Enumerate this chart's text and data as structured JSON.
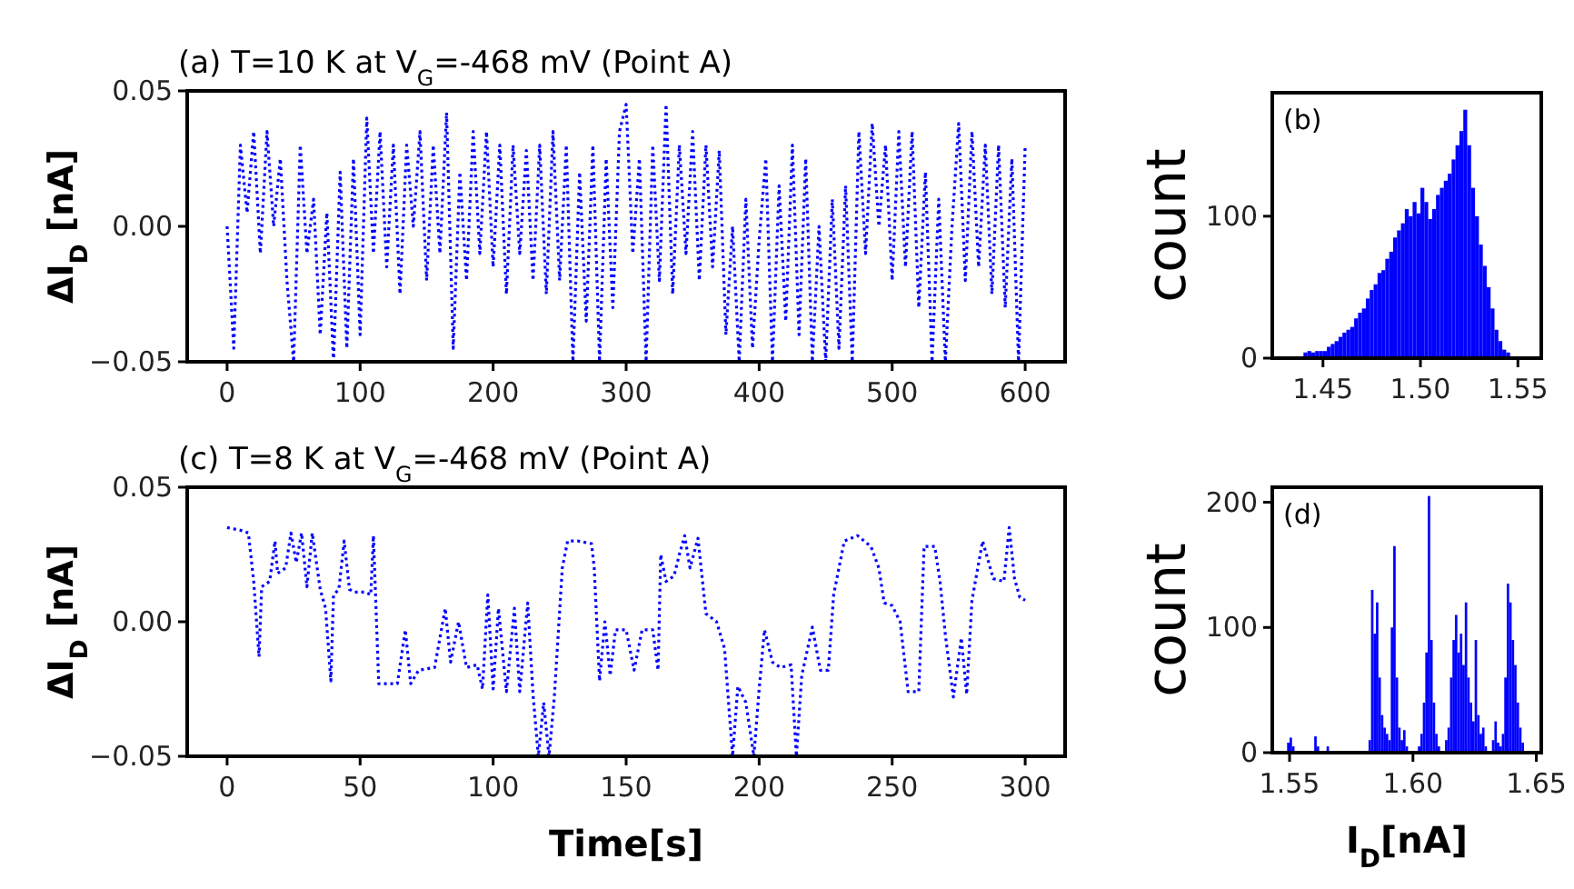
{
  "chart_data": [
    {
      "type": "line",
      "title": "(a) T=10 K at V$_{G}$=-468 mV (Point A)",
      "ylabel": "ΔI$_{D}$ [nA]",
      "line_style": "dotted",
      "grid": false,
      "xlim": [
        -30,
        630
      ],
      "xticks": [
        0,
        100,
        200,
        300,
        400,
        500,
        600
      ],
      "ylim": [
        -0.05,
        0.05
      ],
      "yticks": [
        {
          "value": -0.05,
          "label": "−0.05"
        },
        {
          "value": 0,
          "label": "0.00"
        },
        {
          "value": 0.05,
          "label": "0.05"
        }
      ],
      "x": [
        0,
        5,
        10,
        15,
        20,
        25,
        30,
        35,
        40,
        45,
        50,
        55,
        60,
        65,
        70,
        75,
        80,
        85,
        90,
        95,
        100,
        105,
        110,
        115,
        120,
        125,
        130,
        135,
        140,
        145,
        150,
        155,
        160,
        165,
        170,
        175,
        180,
        185,
        190,
        195,
        200,
        205,
        210,
        215,
        220,
        225,
        230,
        235,
        240,
        245,
        250,
        255,
        260,
        265,
        270,
        275,
        280,
        285,
        290,
        295,
        300,
        305,
        310,
        315,
        320,
        325,
        330,
        335,
        340,
        345,
        350,
        355,
        360,
        365,
        370,
        375,
        380,
        385,
        390,
        395,
        400,
        405,
        410,
        415,
        420,
        425,
        430,
        435,
        440,
        445,
        450,
        455,
        460,
        465,
        470,
        475,
        480,
        485,
        490,
        495,
        500,
        505,
        510,
        515,
        520,
        525,
        530,
        535,
        540,
        545,
        550,
        555,
        560,
        565,
        570,
        575,
        580,
        585,
        590,
        595,
        600
      ],
      "series": [
        {
          "color": "#0000ff",
          "values": [
            0.0,
            -0.045,
            0.03,
            0.005,
            0.035,
            -0.01,
            0.035,
            0.0,
            0.025,
            -0.02,
            -0.05,
            0.03,
            -0.01,
            0.01,
            -0.04,
            0.005,
            -0.05,
            0.02,
            -0.045,
            0.025,
            -0.04,
            0.04,
            -0.01,
            0.035,
            -0.015,
            0.03,
            -0.025,
            0.03,
            0.0,
            0.035,
            -0.02,
            0.03,
            -0.01,
            0.042,
            -0.045,
            0.02,
            -0.02,
            0.035,
            -0.01,
            0.035,
            -0.015,
            0.03,
            -0.025,
            0.03,
            -0.01,
            0.028,
            -0.02,
            0.03,
            -0.025,
            0.035,
            -0.02,
            0.03,
            -0.05,
            0.02,
            -0.035,
            0.03,
            -0.05,
            0.025,
            -0.03,
            0.035,
            0.045,
            -0.01,
            0.025,
            -0.05,
            0.03,
            -0.02,
            0.045,
            -0.025,
            0.03,
            -0.01,
            0.035,
            -0.02,
            0.03,
            -0.015,
            0.028,
            -0.04,
            0.0,
            -0.05,
            0.01,
            -0.045,
            -0.005,
            0.025,
            -0.05,
            0.015,
            -0.035,
            0.03,
            -0.04,
            0.025,
            -0.05,
            0.0,
            -0.05,
            0.01,
            -0.045,
            0.015,
            -0.05,
            0.035,
            -0.01,
            0.038,
            0.0,
            0.03,
            -0.02,
            0.035,
            -0.015,
            0.035,
            -0.03,
            0.02,
            -0.05,
            0.01,
            -0.05,
            0.0,
            0.038,
            -0.02,
            0.035,
            -0.015,
            0.03,
            -0.025,
            0.03,
            -0.03,
            0.025,
            -0.05,
            0.03
          ]
        }
      ]
    },
    {
      "type": "histogram",
      "ylabel": "count",
      "annotations": [
        "(b)"
      ],
      "grid": false,
      "xlim": [
        1.424,
        1.562
      ],
      "xticks": [
        1.45,
        {
          "value": 1.5,
          "label": "1.50"
        },
        1.55
      ],
      "ylim": [
        0,
        187
      ],
      "yticks": [
        0,
        100
      ],
      "bins": [
        1.44,
        1.442,
        1.444,
        1.446,
        1.448,
        1.45,
        1.452,
        1.454,
        1.456,
        1.458,
        1.46,
        1.462,
        1.464,
        1.466,
        1.468,
        1.47,
        1.472,
        1.474,
        1.476,
        1.478,
        1.48,
        1.482,
        1.484,
        1.486,
        1.488,
        1.49,
        1.492,
        1.494,
        1.496,
        1.498,
        1.5,
        1.502,
        1.504,
        1.506,
        1.508,
        1.51,
        1.512,
        1.514,
        1.516,
        1.518,
        1.52,
        1.522,
        1.524,
        1.526,
        1.528,
        1.53,
        1.532,
        1.534,
        1.536,
        1.538,
        1.54,
        1.542,
        1.544,
        1.546
      ],
      "values": [
        4,
        5,
        4,
        5,
        5,
        5,
        8,
        10,
        12,
        15,
        18,
        20,
        22,
        28,
        32,
        35,
        42,
        48,
        52,
        60,
        62,
        70,
        75,
        85,
        90,
        95,
        105,
        100,
        110,
        102,
        120,
        110,
        98,
        105,
        115,
        120,
        125,
        130,
        140,
        150,
        160,
        175,
        150,
        120,
        100,
        80,
        65,
        50,
        35,
        20,
        12,
        6,
        4
      ],
      "color": "#0000ff"
    },
    {
      "type": "line",
      "title": "(c) T=8 K at V$_{G}$=-468 mV (Point A)",
      "xlabel": "Time[s]",
      "ylabel": "ΔI$_{D}$ [nA]",
      "line_style": "dotted",
      "grid": false,
      "xlim": [
        -15,
        315
      ],
      "xticks": [
        0,
        50,
        100,
        150,
        200,
        250,
        300
      ],
      "ylim": [
        -0.05,
        0.05
      ],
      "yticks": [
        {
          "value": -0.05,
          "label": "−0.05"
        },
        {
          "value": 0,
          "label": "0.00"
        },
        {
          "value": 0.05,
          "label": "0.05"
        }
      ],
      "x": [
        0,
        5,
        8,
        10,
        12,
        13,
        16,
        18,
        19,
        22,
        24,
        26,
        28,
        30,
        32,
        35,
        37,
        39,
        40,
        42,
        44,
        46,
        48,
        52,
        54,
        55,
        57,
        60,
        64,
        67,
        69,
        72,
        78,
        82,
        84,
        87,
        90,
        94,
        96,
        98,
        100,
        102,
        105,
        108,
        110,
        113,
        115,
        117,
        119,
        121,
        123,
        126,
        128,
        132,
        137,
        138,
        140,
        142,
        144,
        146,
        150,
        153,
        156,
        160,
        162,
        163,
        165,
        168,
        170,
        172,
        174,
        177,
        180,
        184,
        187,
        190,
        192,
        195,
        198,
        200,
        202,
        205,
        208,
        212,
        214,
        216,
        220,
        223,
        226,
        228,
        232,
        237,
        242,
        245,
        247,
        250,
        253,
        256,
        260,
        262,
        266,
        268,
        270,
        273,
        276,
        278,
        280,
        284,
        288,
        292,
        294,
        296,
        298,
        300
      ],
      "series": [
        {
          "color": "#0000ff",
          "values": [
            0.035,
            0.034,
            0.033,
            0.015,
            -0.013,
            0.013,
            0.015,
            0.03,
            0.018,
            0.02,
            0.033,
            0.022,
            0.033,
            0.013,
            0.033,
            0.012,
            0.005,
            -0.022,
            0.01,
            0.012,
            0.03,
            0.012,
            0.011,
            0.011,
            0.01,
            0.032,
            -0.023,
            -0.023,
            -0.023,
            -0.003,
            -0.023,
            -0.018,
            -0.017,
            0.005,
            -0.015,
            0.0,
            -0.017,
            -0.016,
            -0.025,
            0.01,
            -0.025,
            0.005,
            -0.026,
            0.005,
            -0.026,
            0.007,
            -0.027,
            -0.05,
            -0.03,
            -0.05,
            -0.028,
            0.02,
            0.03,
            0.03,
            0.029,
            0.02,
            -0.022,
            0.0,
            -0.02,
            -0.003,
            -0.003,
            -0.018,
            -0.003,
            -0.003,
            -0.018,
            0.025,
            0.015,
            0.017,
            0.025,
            0.032,
            0.02,
            0.031,
            0.003,
            0.0,
            -0.01,
            -0.05,
            -0.024,
            -0.03,
            -0.05,
            -0.025,
            -0.003,
            -0.015,
            -0.017,
            -0.016,
            -0.05,
            -0.02,
            -0.002,
            -0.018,
            -0.018,
            0.01,
            0.03,
            0.032,
            0.028,
            0.02,
            0.007,
            0.006,
            0.0,
            -0.026,
            -0.026,
            0.028,
            0.028,
            0.015,
            -0.005,
            -0.028,
            -0.006,
            -0.027,
            0.008,
            0.03,
            0.016,
            0.015,
            0.035,
            0.016,
            0.009,
            0.008
          ]
        }
      ]
    },
    {
      "type": "histogram",
      "xlabel": "I$_{D}$[nA]",
      "ylabel": "count",
      "annotations": [
        "(d)"
      ],
      "grid": false,
      "xlim": [
        1.543,
        1.652
      ],
      "xticks": [
        1.55,
        {
          "value": 1.6,
          "label": "1.60"
        },
        1.65
      ],
      "ylim": [
        0,
        212
      ],
      "yticks": [
        0,
        100,
        200
      ],
      "bins": [
        1.549,
        1.55,
        1.551,
        1.552,
        1.56,
        1.561,
        1.562,
        1.565,
        1.566,
        1.582,
        1.583,
        1.584,
        1.585,
        1.586,
        1.587,
        1.588,
        1.589,
        1.59,
        1.591,
        1.592,
        1.593,
        1.594,
        1.595,
        1.596,
        1.597,
        1.598,
        1.602,
        1.603,
        1.604,
        1.605,
        1.606,
        1.607,
        1.608,
        1.609,
        1.61,
        1.611,
        1.613,
        1.614,
        1.615,
        1.616,
        1.617,
        1.618,
        1.619,
        1.62,
        1.621,
        1.622,
        1.623,
        1.624,
        1.625,
        1.626,
        1.627,
        1.628,
        1.629,
        1.63,
        1.632,
        1.633,
        1.634,
        1.635,
        1.636,
        1.637,
        1.638,
        1.639,
        1.64,
        1.641,
        1.642,
        1.643,
        1.644,
        1.645
      ],
      "values": [
        8,
        12,
        5,
        0,
        13,
        5,
        0,
        5,
        0,
        10,
        130,
        95,
        120,
        60,
        30,
        20,
        15,
        10,
        100,
        165,
        60,
        20,
        10,
        18,
        5,
        0,
        5,
        15,
        40,
        80,
        205,
        90,
        40,
        15,
        5,
        0,
        10,
        20,
        60,
        90,
        110,
        80,
        95,
        70,
        120,
        60,
        40,
        25,
        90,
        30,
        15,
        20,
        5,
        0,
        10,
        25,
        8,
        5,
        15,
        60,
        135,
        120,
        90,
        70,
        40,
        20,
        8
      ],
      "color": "#0000ff"
    }
  ]
}
